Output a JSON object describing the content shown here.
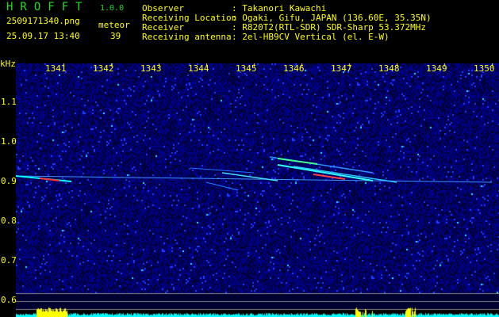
{
  "header": {
    "app_title": "HROFFT",
    "version": "1.0.0",
    "filename": "2509171340.png",
    "datetime": "25.09.17 13:40",
    "mode_label": "meteor",
    "count": "39"
  },
  "station_info": [
    {
      "label": "Observer",
      "value": ": Takanori Kawachi"
    },
    {
      "label": "Receiving Location",
      "value": ": Ogaki, Gifu, JAPAN (136.60E, 35.35N)"
    },
    {
      "label": "Receiver",
      "value": ": R820T2(RTL-SDR) SDR-Sharp 53.372MHz"
    },
    {
      "label": "Receiving antenna",
      "value": ": 2el-HB9CV Vertical (el. E-W)"
    }
  ],
  "spectrogram": {
    "y_unit": "kHz",
    "time_ticks": [
      "1341",
      "1342",
      "1343",
      "1344",
      "1345",
      "1346",
      "1347",
      "1348",
      "1349",
      "1350"
    ],
    "freq_ticks": [
      "1.1",
      "1.0",
      "0.9",
      "0.8",
      "0.7",
      "0.6"
    ],
    "colors": {
      "background": "#000040",
      "noise": "#1a2aff",
      "signal": "#00ffff",
      "strong": "#ff3030",
      "level_bar": "#00ffff",
      "level_peak": "#ffff00",
      "text": "#ffff00",
      "title": "#22dd22"
    }
  }
}
